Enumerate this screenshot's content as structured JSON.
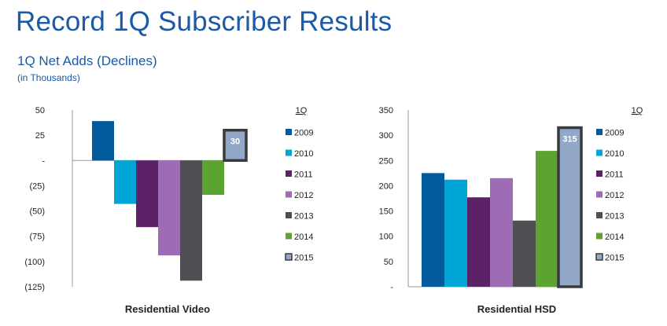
{
  "page": {
    "title": "Record 1Q Subscriber Results",
    "subtitle": "1Q Net Adds (Declines)",
    "units": "(in Thousands)"
  },
  "chart_data": [
    {
      "type": "bar",
      "xlabel": "Residential Video",
      "legend_title": "1Q",
      "legend_position": "right",
      "ylim": [
        -125,
        50
      ],
      "yticks": [
        50,
        25,
        0,
        -25,
        -50,
        -75,
        -100,
        -125
      ],
      "ytick_labels": [
        "50",
        "25",
        "-",
        "(25)",
        "(50)",
        "(75)",
        "(100)",
        "(125)"
      ],
      "grid": false,
      "categories": [
        "2009",
        "2010",
        "2011",
        "2012",
        "2013",
        "2014",
        "2015"
      ],
      "values": [
        39,
        -43,
        -66,
        -94,
        -119,
        -34,
        30
      ],
      "colors": [
        "#005a9c",
        "#00a6d6",
        "#5c2268",
        "#9e6bb5",
        "#4d4f53",
        "#5da331",
        "#93a8c9"
      ],
      "highlight": {
        "category": "2015",
        "label": "30"
      }
    },
    {
      "type": "bar",
      "xlabel": "Residential HSD",
      "legend_title": "1Q",
      "legend_position": "right",
      "ylim": [
        0,
        350
      ],
      "yticks": [
        350,
        300,
        250,
        200,
        150,
        100,
        50,
        0
      ],
      "ytick_labels": [
        "350",
        "300",
        "250",
        "200",
        "150",
        "100",
        "50",
        "-"
      ],
      "grid": false,
      "categories": [
        "2009",
        "2010",
        "2011",
        "2012",
        "2013",
        "2014",
        "2015"
      ],
      "values": [
        225,
        212,
        177,
        215,
        131,
        269,
        315
      ],
      "colors": [
        "#005a9c",
        "#00a6d6",
        "#5c2268",
        "#9e6bb5",
        "#4d4f53",
        "#5da331",
        "#93a8c9"
      ],
      "highlight": {
        "category": "2015",
        "label": "315"
      }
    }
  ]
}
